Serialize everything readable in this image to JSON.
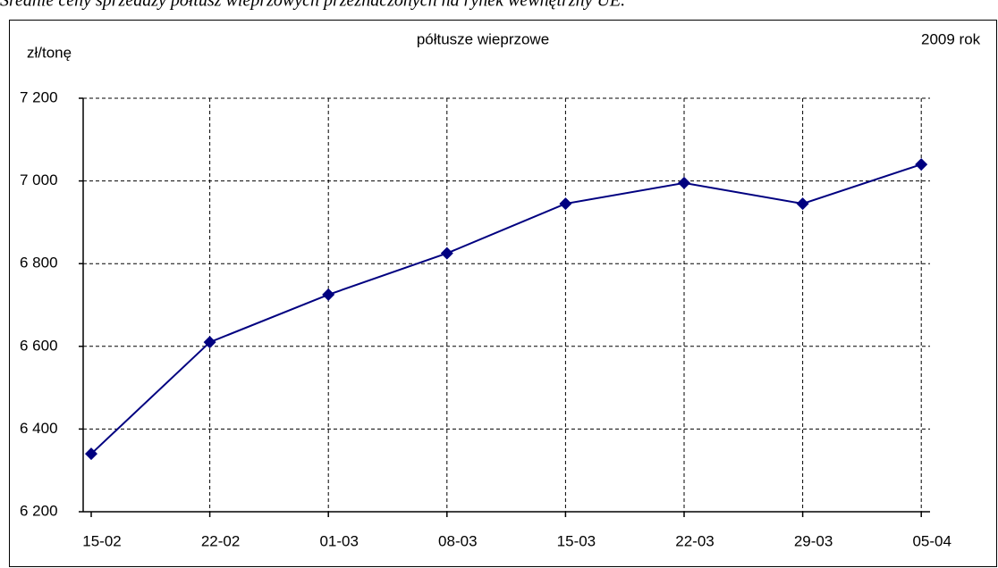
{
  "caption": "Średnie ceny sprzedaży półtusz wieprzowych przeznaczonych na rynek wewnętrzny UE.",
  "chart_data": {
    "type": "line",
    "title": "półtusze wieprzowe",
    "ylabel": "zł/tonę",
    "annotation": "2009 rok",
    "categories": [
      "15-02",
      "22-02",
      "01-03",
      "08-03",
      "15-03",
      "22-03",
      "29-03",
      "05-04"
    ],
    "series": [
      {
        "name": "półtusze wieprzowe",
        "color": "#000080",
        "values": [
          6340,
          6610,
          6725,
          6825,
          6945,
          6995,
          6945,
          7040
        ]
      }
    ],
    "ylim": [
      6200,
      7200
    ],
    "yticks": [
      {
        "value": 6200,
        "label": "6 200"
      },
      {
        "value": 6400,
        "label": "6 400"
      },
      {
        "value": 6600,
        "label": "6 600"
      },
      {
        "value": 6800,
        "label": "6 800"
      },
      {
        "value": 7000,
        "label": "7 000"
      },
      {
        "value": 7200,
        "label": "7 200"
      }
    ],
    "grid": true,
    "marker": "diamond"
  }
}
